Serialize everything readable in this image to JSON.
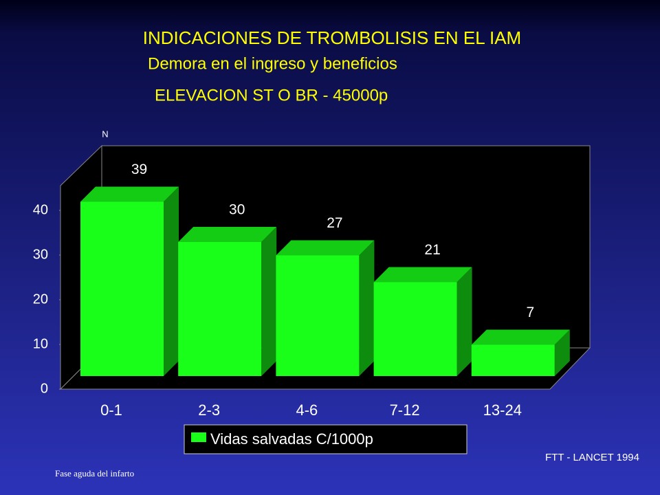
{
  "chart_data": {
    "type": "bar3d",
    "title": "INDICACIONES DE TROMBOLISIS EN EL IAM",
    "subtitles": [
      "Demora en el ingreso y beneficios",
      "ELEVACION ST O BR - 45000p"
    ],
    "ylabel": "N",
    "categories": [
      "0-1",
      "2-3",
      "4-6",
      "7-12",
      "13-24"
    ],
    "series": [
      {
        "name": "Vidas salvadas C/1000p",
        "color": "#1aff1a",
        "values": [
          39,
          30,
          27,
          21,
          7
        ]
      }
    ],
    "ylim": [
      0,
      45
    ],
    "yticks": [
      0,
      10,
      20,
      30,
      40
    ],
    "source": "FTT - LANCET 1994",
    "footnote": "Fase aguda del infarto"
  }
}
